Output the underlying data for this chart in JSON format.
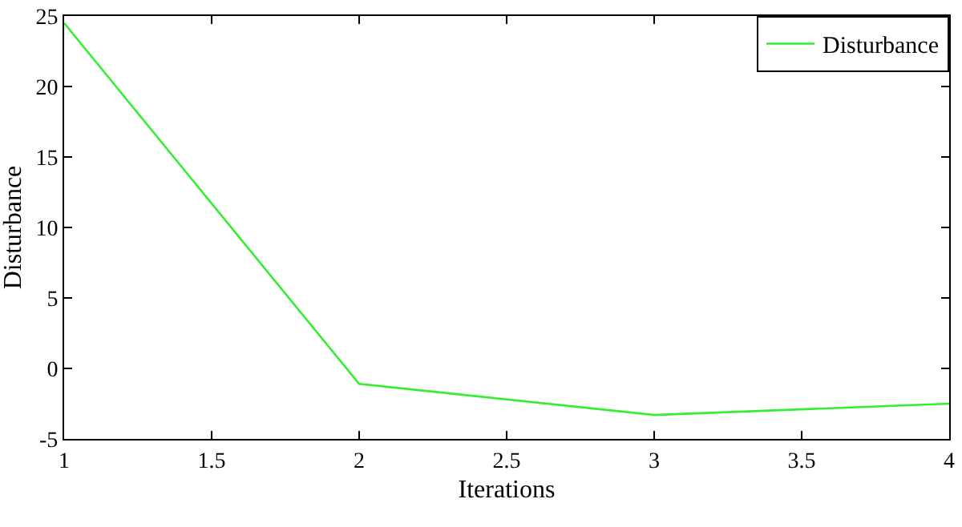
{
  "chart_data": {
    "type": "line",
    "xlabel": "Iterations",
    "ylabel": "Disturbance",
    "x": [
      1,
      2,
      3,
      4
    ],
    "series": [
      {
        "name": "Disturbance",
        "color": "#33ee33",
        "values": [
          24.5,
          -1.1,
          -3.3,
          -2.5
        ]
      }
    ],
    "xlim": [
      1,
      4
    ],
    "xticks": [
      1,
      1.5,
      2,
      2.5,
      3,
      3.5,
      4
    ],
    "ylim": [
      -5,
      25
    ],
    "yticks": [
      -5,
      0,
      5,
      10,
      15,
      20,
      25
    ],
    "grid": false,
    "legend": "top right",
    "marker": "none",
    "line_style": "solid"
  }
}
